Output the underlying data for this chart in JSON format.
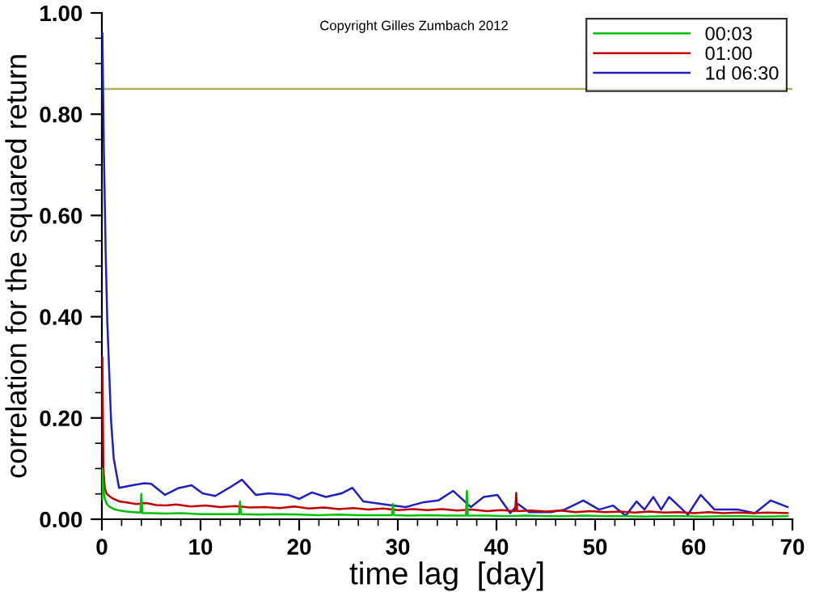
{
  "chart_data": {
    "type": "line",
    "xlabel": "time lag  [day]",
    "ylabel": "correlation for the squared return",
    "annotations": [
      "Copyright Gilles Zumbach 2012"
    ],
    "xlim": [
      0,
      70
    ],
    "xticks": [
      0,
      10,
      20,
      30,
      40,
      50,
      60,
      70
    ],
    "ylim": [
      0,
      1
    ],
    "yticks": [
      {
        "value": 0,
        "label": "0.00"
      },
      {
        "value": 0.2,
        "label": "0.20"
      },
      {
        "value": 0.4,
        "label": "0.40"
      },
      {
        "value": 0.6,
        "label": "0.60"
      },
      {
        "value": 0.8,
        "label": "0.80"
      },
      {
        "value": 1,
        "label": "1.00"
      }
    ],
    "grid": false,
    "legend": "top right",
    "marker": "none",
    "line_style": "solid",
    "ref_lines": [
      {
        "axis": "y",
        "value": 0.85,
        "color": "#b0b060"
      }
    ],
    "series": [
      {
        "name": "00:03",
        "color": "#00c000",
        "x": [
          0.02,
          0.05,
          0.15,
          0.3,
          0.5,
          0.8,
          1.2,
          1.8,
          2.5,
          3.2,
          3.9,
          4.0,
          4.1,
          5,
          6.5,
          8,
          10,
          12,
          13.9,
          14,
          14.1,
          16,
          18,
          20,
          22,
          24,
          26,
          28,
          29.4,
          29.5,
          29.6,
          31,
          33,
          35,
          36.9,
          37.0,
          37.1,
          39,
          41,
          43,
          45,
          47,
          49,
          51,
          53,
          55,
          57,
          59,
          61,
          63,
          65,
          67,
          69.5
        ],
        "values": [
          0.04,
          0.1,
          0.06,
          0.04,
          0.03,
          0.024,
          0.02,
          0.017,
          0.015,
          0.014,
          0.013,
          0.05,
          0.012,
          0.012,
          0.011,
          0.012,
          0.01,
          0.01,
          0.01,
          0.035,
          0.01,
          0.009,
          0.01,
          0.009,
          0.008,
          0.009,
          0.008,
          0.008,
          0.008,
          0.03,
          0.008,
          0.007,
          0.008,
          0.007,
          0.007,
          0.056,
          0.007,
          0.007,
          0.006,
          0.007,
          0.006,
          0.006,
          0.007,
          0.006,
          0.006,
          0.005,
          0.006,
          0.006,
          0.005,
          0.006,
          0.006,
          0.005,
          0.006
        ]
      },
      {
        "name": "01:00",
        "color": "#c00000",
        "x": [
          0.02,
          0.05,
          0.15,
          0.3,
          0.5,
          0.8,
          1.2,
          1.8,
          2.5,
          3.5,
          4.5,
          5.5,
          6.5,
          7.5,
          9,
          10.5,
          12,
          13.5,
          15,
          16.5,
          18,
          19.5,
          21,
          22.5,
          24,
          25.5,
          27,
          28.5,
          30,
          31.5,
          33,
          34.5,
          36,
          37.5,
          39,
          40.5,
          41.9,
          42.0,
          42.1,
          43.5,
          45,
          46.5,
          48,
          49.5,
          51,
          52.5,
          54,
          55.5,
          57,
          58.5,
          60,
          61.5,
          63,
          64.5,
          66,
          67.5,
          69.5
        ],
        "values": [
          0.2,
          0.32,
          0.1,
          0.06,
          0.05,
          0.045,
          0.04,
          0.035,
          0.033,
          0.03,
          0.032,
          0.028,
          0.027,
          0.029,
          0.025,
          0.027,
          0.024,
          0.026,
          0.023,
          0.024,
          0.022,
          0.025,
          0.021,
          0.023,
          0.02,
          0.022,
          0.019,
          0.021,
          0.018,
          0.02,
          0.018,
          0.02,
          0.017,
          0.019,
          0.016,
          0.018,
          0.016,
          0.052,
          0.016,
          0.017,
          0.015,
          0.017,
          0.014,
          0.016,
          0.014,
          0.015,
          0.013,
          0.015,
          0.013,
          0.014,
          0.012,
          0.014,
          0.012,
          0.013,
          0.012,
          0.013,
          0.012
        ]
      },
      {
        "name": "1d 06:30",
        "color": "#2020c0",
        "x": [
          0.05,
          0.2,
          0.38,
          0.55,
          0.93,
          1.2,
          1.74,
          3.1,
          4.3,
          5.0,
          6.4,
          7.7,
          9.1,
          10.2,
          11.5,
          12.9,
          14.2,
          15.6,
          16.9,
          18.9,
          20.0,
          21.3,
          22.7,
          24.3,
          25.4,
          26.5,
          28.7,
          30.8,
          32.5,
          34.1,
          35.6,
          37.4,
          38.7,
          40.1,
          41.4,
          42.2,
          43.3,
          45.5,
          46.9,
          48.8,
          50.4,
          51.8,
          53.1,
          54.2,
          55.0,
          55.9,
          56.7,
          57.5,
          59.4,
          60.7,
          62.1,
          64.5,
          66.2,
          67.8,
          69.5
        ],
        "values": [
          0.96,
          0.73,
          0.53,
          0.39,
          0.195,
          0.12,
          0.062,
          0.067,
          0.071,
          0.07,
          0.048,
          0.061,
          0.067,
          0.051,
          0.046,
          0.062,
          0.078,
          0.048,
          0.051,
          0.048,
          0.04,
          0.053,
          0.044,
          0.051,
          0.062,
          0.035,
          0.029,
          0.024,
          0.033,
          0.037,
          0.056,
          0.024,
          0.044,
          0.048,
          0.012,
          0.03,
          0.014,
          0.014,
          0.019,
          0.037,
          0.019,
          0.027,
          0.007,
          0.035,
          0.019,
          0.044,
          0.019,
          0.044,
          0.009,
          0.048,
          0.019,
          0.019,
          0.012,
          0.037,
          0.024
        ]
      }
    ]
  }
}
